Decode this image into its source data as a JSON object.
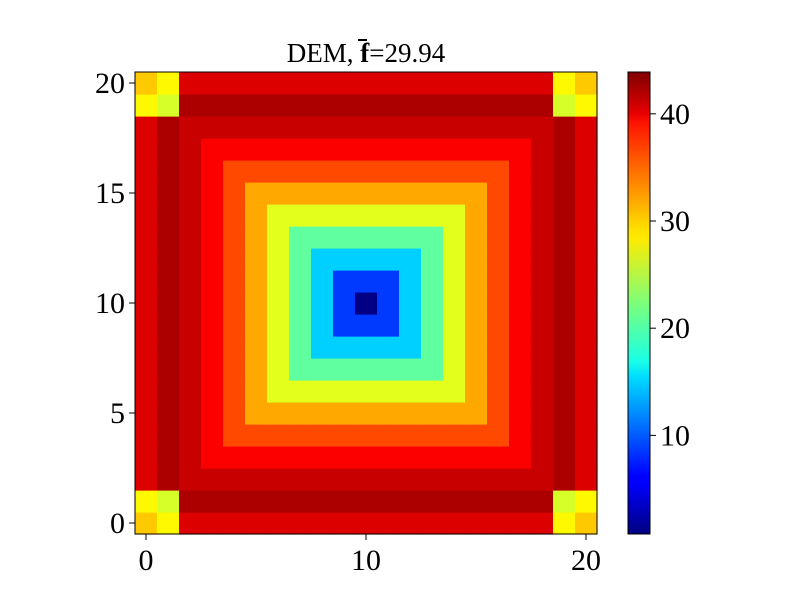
{
  "chart_data": {
    "type": "heatmap",
    "title_prefix": "DEM, ",
    "title_symbol": "f",
    "title_value": "=29.94",
    "colormap": "jet",
    "vmin": 0.8,
    "vmax": 43.9,
    "x_ticks": [
      0,
      10,
      20
    ],
    "y_ticks": [
      0,
      5,
      10,
      15,
      20
    ],
    "colorbar_ticks": [
      10,
      20,
      30,
      40
    ],
    "xlim": [
      -0.5,
      20.5
    ],
    "ylim": [
      -0.5,
      20.5
    ],
    "grid_size": 21,
    "model": {
      "description_of_values": "row-major grid, z[y][x], y from 0 (bottom) to 20 (top)"
    }
  }
}
